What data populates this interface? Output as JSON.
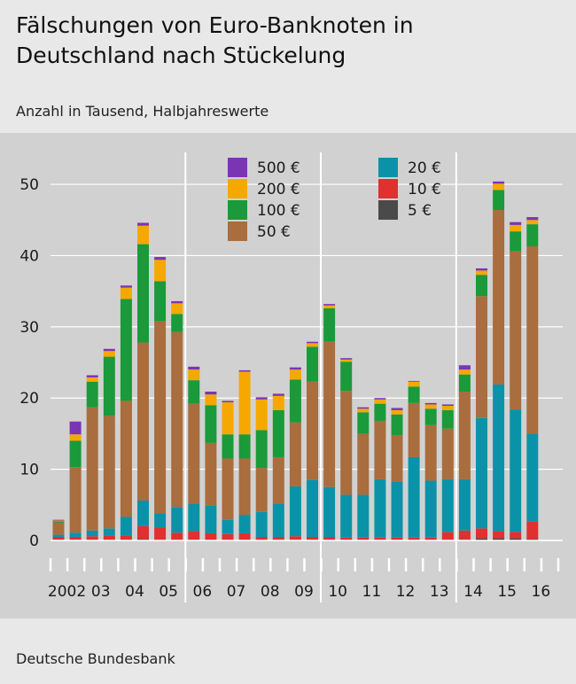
{
  "title": "Fälschungen von Euro-Banknoten in Deutschland nach Stückelung",
  "subtitle": "Anzahl in Tausend, Halbjahreswerte",
  "source": "Deutsche Bundesbank",
  "chart_data": {
    "type": "bar",
    "stacked": true,
    "ylim": [
      0,
      52
    ],
    "yticks": [
      0,
      10,
      20,
      30,
      40,
      50
    ],
    "grid": "vertical year separators",
    "legend_placement": "top",
    "year_labels": [
      "2002",
      "03",
      "04",
      "05",
      "06",
      "07",
      "08",
      "09",
      "10",
      "11",
      "12",
      "13",
      "14",
      "15",
      "16"
    ],
    "categories": [
      "2002 H1",
      "2002 H2",
      "2003 H1",
      "2003 H2",
      "2004 H1",
      "2004 H2",
      "2005 H1",
      "2005 H2",
      "2006 H1",
      "2006 H2",
      "2007 H1",
      "2007 H2",
      "2008 H1",
      "2008 H2",
      "2009 H1",
      "2009 H2",
      "2010 H1",
      "2010 H2",
      "2011 H1",
      "2011 H2",
      "2012 H1",
      "2012 H2",
      "2013 H1",
      "2013 H2",
      "2014 H1",
      "2014 H2",
      "2015 H1",
      "2015 H2",
      "2016 H1"
    ],
    "series": [
      {
        "name": "5 €",
        "color": "#4a4a4a",
        "values": [
          0.1,
          0.1,
          0.1,
          0.1,
          0.1,
          0.2,
          0.1,
          0.1,
          0.1,
          0.1,
          0.1,
          0.1,
          0.1,
          0.1,
          0.1,
          0.1,
          0.1,
          0.1,
          0.1,
          0.1,
          0.1,
          0.1,
          0.1,
          0.1,
          0.1,
          0.3,
          0.3,
          0.3,
          0.2
        ]
      },
      {
        "name": "10 €",
        "color": "#e03030",
        "values": [
          0.4,
          0.4,
          0.5,
          0.6,
          0.6,
          1.8,
          1.7,
          1.0,
          1.2,
          0.9,
          0.8,
          0.9,
          0.4,
          0.4,
          0.5,
          0.4,
          0.4,
          0.3,
          0.3,
          0.3,
          0.3,
          0.3,
          0.3,
          1.1,
          1.3,
          1.4,
          1.0,
          0.9,
          2.5
        ]
      },
      {
        "name": "20 €",
        "color": "#0a93a8",
        "values": [
          0.3,
          0.6,
          0.8,
          1.0,
          2.6,
          3.6,
          2.0,
          3.6,
          3.8,
          3.9,
          2.0,
          2.6,
          3.5,
          4.6,
          7.0,
          8.0,
          7.0,
          6.0,
          6.0,
          8.2,
          7.9,
          11.3,
          8.0,
          7.4,
          7.2,
          15.5,
          20.6,
          17.2,
          12.3
        ]
      },
      {
        "name": "50 €",
        "color": "#a96d3e",
        "values": [
          1.7,
          9.2,
          17.3,
          15.8,
          16.3,
          22.2,
          27.0,
          24.6,
          14.1,
          8.8,
          8.6,
          7.9,
          6.2,
          6.6,
          9.0,
          13.8,
          20.4,
          14.6,
          8.6,
          8.2,
          6.5,
          7.6,
          7.8,
          7.1,
          12.3,
          17.1,
          24.5,
          22.2,
          26.3
        ]
      },
      {
        "name": "100 €",
        "color": "#1a9a3a",
        "values": [
          0.2,
          3.7,
          3.6,
          8.3,
          14.3,
          13.8,
          5.6,
          2.5,
          3.3,
          5.3,
          3.4,
          3.4,
          5.3,
          6.6,
          6.0,
          4.9,
          4.7,
          4.1,
          3.0,
          2.4,
          2.9,
          2.3,
          2.3,
          2.6,
          2.4,
          3.0,
          2.8,
          2.8,
          3.1
        ]
      },
      {
        "name": "200 €",
        "color": "#f5a800",
        "values": [
          0.1,
          0.9,
          0.6,
          0.8,
          1.6,
          2.6,
          3.0,
          1.5,
          1.5,
          1.5,
          4.5,
          8.8,
          4.3,
          2.0,
          1.4,
          0.5,
          0.4,
          0.3,
          0.5,
          0.6,
          0.6,
          0.7,
          0.6,
          0.6,
          0.7,
          0.6,
          0.9,
          0.9,
          0.6
        ]
      },
      {
        "name": "500 €",
        "color": "#7b35b4",
        "values": [
          0.1,
          1.8,
          0.3,
          0.3,
          0.3,
          0.4,
          0.4,
          0.3,
          0.4,
          0.4,
          0.2,
          0.2,
          0.3,
          0.3,
          0.3,
          0.2,
          0.2,
          0.2,
          0.2,
          0.2,
          0.3,
          0.1,
          0.2,
          0.2,
          0.6,
          0.3,
          0.3,
          0.4,
          0.4
        ]
      }
    ]
  }
}
